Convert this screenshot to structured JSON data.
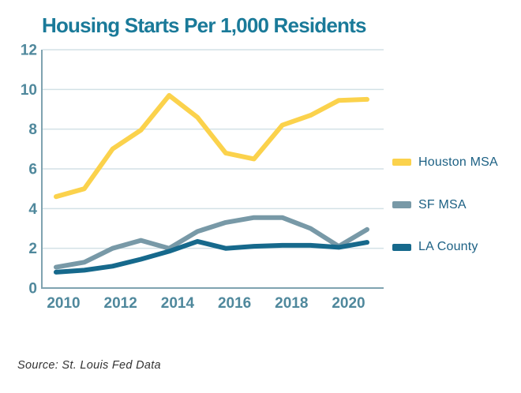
{
  "title": "Housing Starts Per 1,000 Residents",
  "source_note": "Source: St. Louis Fed Data",
  "colors": {
    "background": "#FFFFFF",
    "title_text": "#1A7A99",
    "tick_label_text": "#4F889C",
    "legend_text": "#1D6184",
    "gridline": "#D3E1E6",
    "axis_line": "#7FA3B0"
  },
  "legend": {
    "position": "right",
    "items": [
      {
        "label": "Houston MSA",
        "color": "#FBD24C"
      },
      {
        "label": "SF MSA",
        "color": "#7899A7"
      },
      {
        "label": "LA County",
        "color": "#16698C"
      }
    ]
  },
  "chart_data": {
    "type": "line",
    "title": "Housing Starts Per 1,000 Residents",
    "x": [
      2010,
      2011,
      2012,
      2013,
      2014,
      2015,
      2016,
      2017,
      2018,
      2019,
      2020,
      2021
    ],
    "x_tick_labels": [
      "2010",
      "2012",
      "2014",
      "2016",
      "2018",
      "2020"
    ],
    "y_tick_labels": [
      "0",
      "2",
      "4",
      "6",
      "8",
      "10",
      "12"
    ],
    "ylim": [
      0,
      12
    ],
    "xlabel": "",
    "ylabel": "",
    "grid": "horizontal",
    "legend_position": "right",
    "series": [
      {
        "name": "Houston MSA",
        "color": "#FBD24C",
        "values": [
          4.6,
          5.0,
          7.0,
          7.95,
          9.7,
          8.6,
          6.8,
          6.5,
          8.2,
          8.7,
          9.45,
          9.5
        ]
      },
      {
        "name": "SF MSA",
        "color": "#7899A7",
        "values": [
          1.05,
          1.3,
          2.0,
          2.4,
          2.0,
          2.85,
          3.3,
          3.55,
          3.55,
          3.0,
          2.1,
          2.95
        ]
      },
      {
        "name": "LA County",
        "color": "#16698C",
        "values": [
          0.8,
          0.9,
          1.1,
          1.45,
          1.85,
          2.35,
          2.0,
          2.1,
          2.15,
          2.15,
          2.05,
          2.3
        ]
      }
    ],
    "source": "Source: St. Louis Fed Data"
  }
}
